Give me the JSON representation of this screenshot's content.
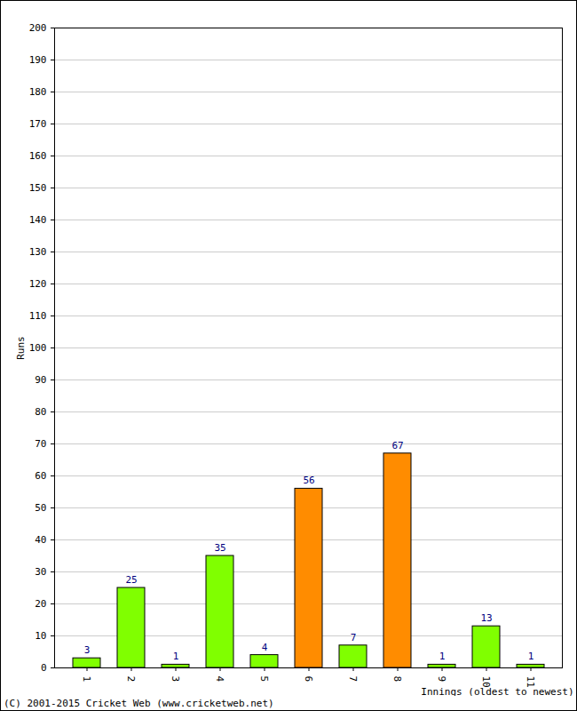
{
  "chart_data": {
    "type": "bar",
    "categories": [
      "1",
      "2",
      "3",
      "4",
      "5",
      "6",
      "7",
      "8",
      "9",
      "10",
      "11"
    ],
    "values": [
      3,
      25,
      1,
      35,
      4,
      56,
      7,
      67,
      1,
      13,
      1
    ],
    "colors": [
      "#80ff00",
      "#80ff00",
      "#80ff00",
      "#80ff00",
      "#80ff00",
      "#ff8c00",
      "#80ff00",
      "#ff8c00",
      "#80ff00",
      "#80ff00",
      "#80ff00"
    ],
    "x_label": "Innings (oldest to newest)",
    "y_label": "Runs",
    "caption": "(C) 2001-2015 Cricket Web (www.cricketweb.net)",
    "ylim": [
      0,
      200
    ],
    "yticks": [
      0,
      10,
      20,
      30,
      40,
      50,
      60,
      70,
      80,
      90,
      100,
      110,
      120,
      130,
      140,
      150,
      160,
      170,
      180,
      190,
      200
    ],
    "grid": true,
    "data_labels": true
  }
}
